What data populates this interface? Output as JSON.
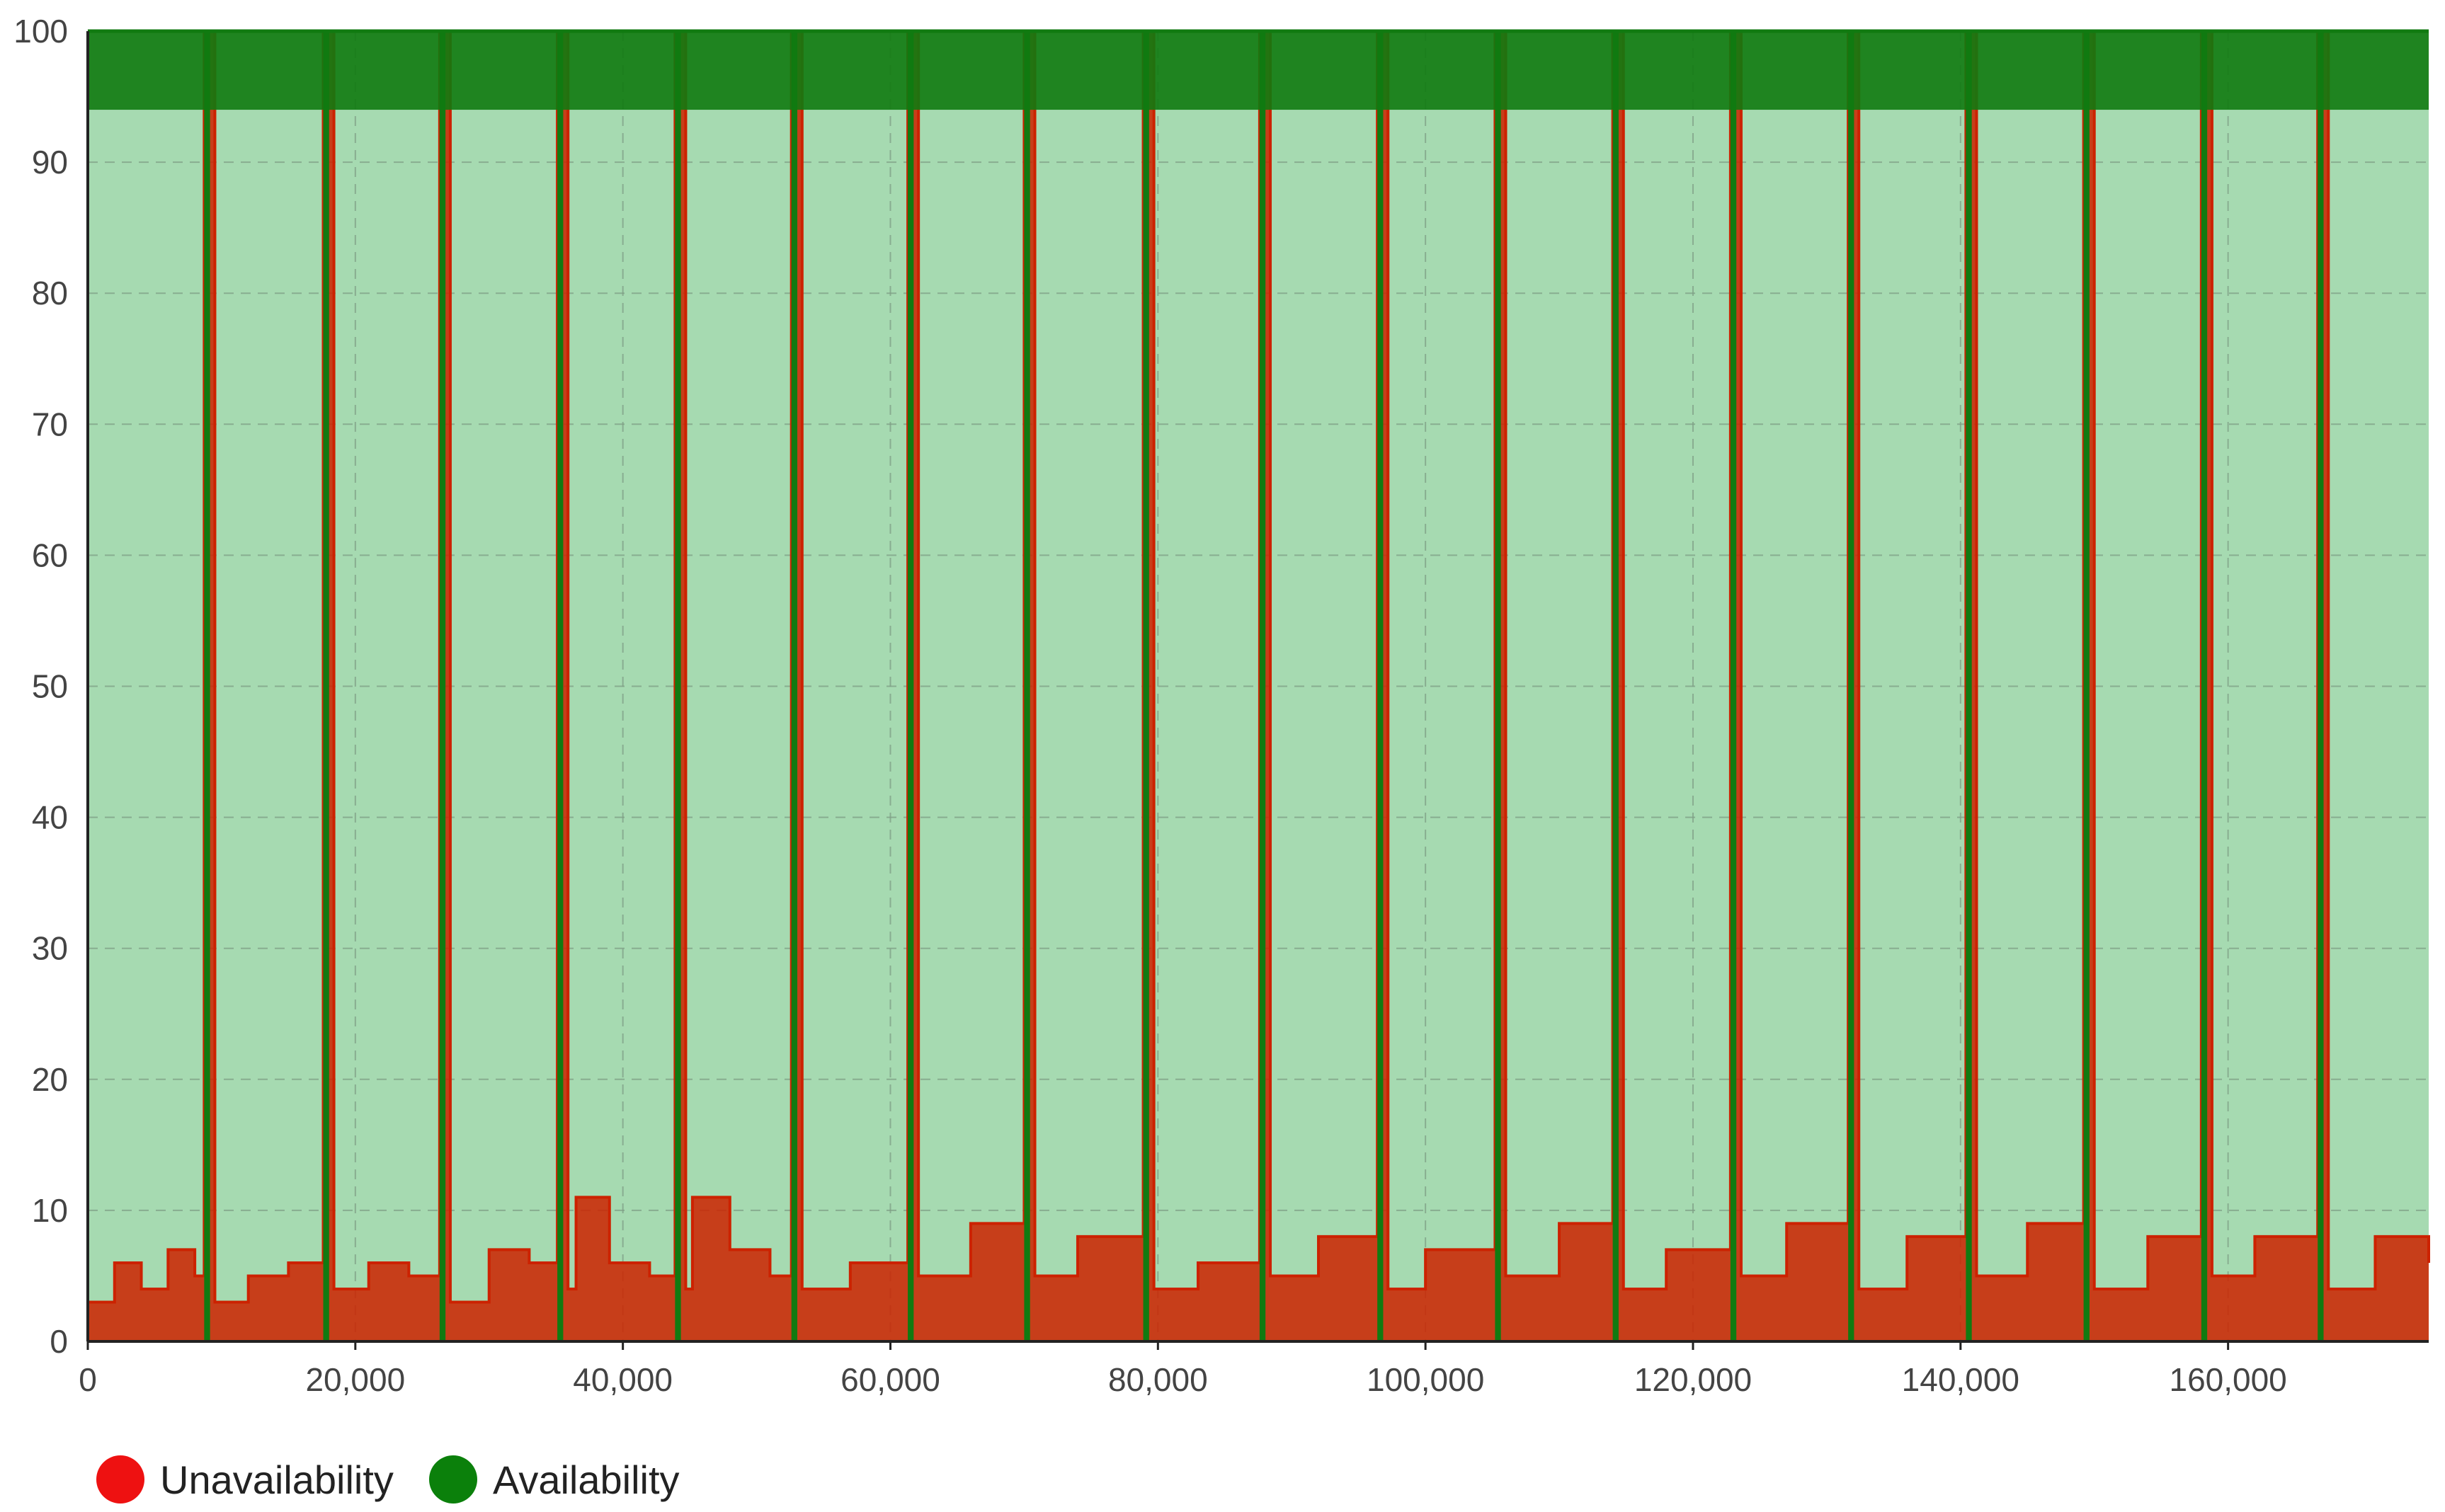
{
  "chart_data": {
    "type": "area",
    "title": "",
    "xlabel": "",
    "ylabel": "",
    "xlim": [
      0,
      175000
    ],
    "ylim": [
      0,
      100
    ],
    "x_ticks": [
      0,
      20000,
      40000,
      60000,
      80000,
      100000,
      120000,
      140000,
      160000
    ],
    "x_tick_labels": [
      "0",
      "20,000",
      "40,000",
      "60,000",
      "80,000",
      "100,000",
      "120,000",
      "140,000",
      "160,000"
    ],
    "y_ticks": [
      0,
      10,
      20,
      30,
      40,
      50,
      60,
      70,
      80,
      90,
      100
    ],
    "y_tick_labels": [
      "0",
      "10",
      "20",
      "30",
      "40",
      "50",
      "60",
      "70",
      "80",
      "90",
      "100"
    ],
    "grid": true,
    "legend_position": "bottom-left",
    "stacked": true,
    "series": [
      {
        "name": "Unavailability",
        "color": "#cc2200",
        "legend_color": "#ee1111",
        "x": [
          0,
          2000,
          4000,
          6000,
          8000,
          8700,
          9500,
          12000,
          15000,
          17600,
          18400,
          21000,
          24000,
          26300,
          27100,
          30000,
          33000,
          35100,
          35900,
          36500,
          39000,
          42000,
          43900,
          44700,
          45200,
          48000,
          51000,
          52600,
          53400,
          57000,
          61300,
          62100,
          66000,
          70000,
          70800,
          74000,
          78900,
          79700,
          83000,
          87600,
          88400,
          92000,
          96400,
          97200,
          100000,
          105200,
          106000,
          110000,
          114000,
          114800,
          118000,
          122800,
          123600,
          127000,
          131600,
          132400,
          136000,
          140400,
          141200,
          145000,
          149200,
          150000,
          154000,
          158000,
          158800,
          162000,
          166700,
          167500,
          171000,
          175000
        ],
        "values": [
          3,
          6,
          4,
          7,
          5,
          100,
          3,
          5,
          6,
          100,
          4,
          6,
          5,
          100,
          3,
          7,
          6,
          100,
          4,
          11,
          6,
          5,
          100,
          4,
          11,
          7,
          5,
          100,
          4,
          6,
          100,
          5,
          9,
          100,
          5,
          8,
          100,
          4,
          6,
          100,
          5,
          8,
          100,
          4,
          7,
          100,
          5,
          9,
          100,
          4,
          7,
          100,
          5,
          9,
          100,
          4,
          8,
          100,
          5,
          9,
          100,
          4,
          8,
          100,
          5,
          8,
          100,
          4,
          8,
          6
        ]
      },
      {
        "name": "Availability",
        "color": "#117a11",
        "legend_color": "#0b800b",
        "x": [
          0,
          2000,
          4000,
          6000,
          8000,
          8700,
          9500,
          12000,
          15000,
          17600,
          18400,
          21000,
          24000,
          26300,
          27100,
          30000,
          33000,
          35100,
          35900,
          36500,
          39000,
          42000,
          43900,
          44700,
          45200,
          48000,
          51000,
          52600,
          53400,
          57000,
          61300,
          62100,
          66000,
          70000,
          70800,
          74000,
          78900,
          79700,
          83000,
          87600,
          88400,
          92000,
          96400,
          97200,
          100000,
          105200,
          106000,
          110000,
          114000,
          114800,
          118000,
          122800,
          123600,
          127000,
          131600,
          132400,
          136000,
          140400,
          141200,
          145000,
          149200,
          150000,
          154000,
          158000,
          158800,
          162000,
          166700,
          167500,
          171000,
          175000
        ],
        "values": [
          97,
          94,
          96,
          93,
          95,
          0,
          97,
          95,
          94,
          0,
          96,
          94,
          95,
          0,
          97,
          93,
          94,
          0,
          96,
          89,
          94,
          95,
          0,
          96,
          89,
          93,
          95,
          0,
          96,
          94,
          0,
          95,
          91,
          0,
          95,
          92,
          0,
          96,
          94,
          0,
          95,
          92,
          0,
          96,
          93,
          0,
          95,
          91,
          0,
          96,
          93,
          0,
          95,
          91,
          0,
          96,
          92,
          0,
          95,
          91,
          0,
          96,
          92,
          0,
          95,
          92,
          0,
          96,
          92,
          94
        ]
      }
    ]
  }
}
